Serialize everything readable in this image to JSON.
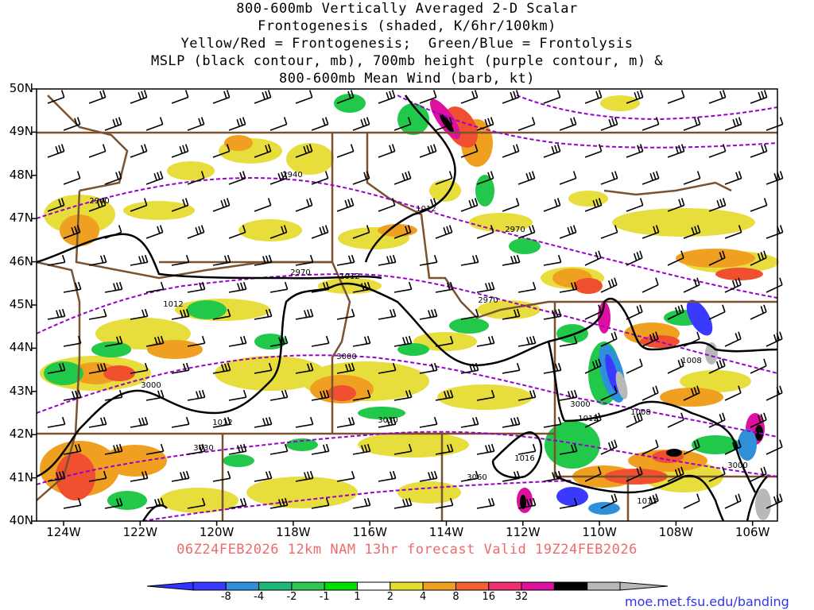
{
  "title": {
    "line1": "800-600mb Vertically Averaged 2-D Scalar",
    "line2": "Frontogenesis (shaded, K/6hr/100km)",
    "line3": "Yellow/Red = Frontogenesis;  Green/Blue = Frontolysis",
    "line4": "MSLP (black contour, mb), 700mb height (purple contour, m) &",
    "line5": "800-600mb Mean Wind (barb, kt)"
  },
  "latitudes": [
    "50N",
    "49N",
    "48N",
    "47N",
    "46N",
    "45N",
    "44N",
    "43N",
    "42N",
    "41N",
    "40N"
  ],
  "longitudes": [
    "124W",
    "122W",
    "120W",
    "118W",
    "116W",
    "114W",
    "112W",
    "110W",
    "108W",
    "106W"
  ],
  "valid_line": "06Z24FEB2026 12km NAM 13hr forecast Valid 19Z24FEB2026",
  "colorbar": {
    "labels": [
      "-8",
      "-4",
      "-2",
      "-1",
      "1",
      "2",
      "4",
      "8",
      "16",
      "32"
    ],
    "colors": [
      "#3a3aff",
      "#2f8fd8",
      "#20b878",
      "#2ec850",
      "#00e000",
      "#ffffff",
      "#e6dc32",
      "#f0a020",
      "#f06030",
      "#f03070",
      "#dd10a0",
      "#000000",
      "#b8b8b8"
    ]
  },
  "height_labels": [
    "2940",
    "2940",
    "2970",
    "2970",
    "2970",
    "3000",
    "3000",
    "3000",
    "3030",
    "3030",
    "3060",
    "3000"
  ],
  "pressure_labels": [
    "1012",
    "1012",
    "1012",
    "1012",
    "1016",
    "1012",
    "1008",
    "1008",
    "1012"
  ],
  "credit": "moe.met.fsu.edu/banding",
  "colors": {
    "pressure_contour": "#000000",
    "height_contour": "#9900cc",
    "borders": "#7a5230",
    "valid_text": "#ee6a6a"
  }
}
